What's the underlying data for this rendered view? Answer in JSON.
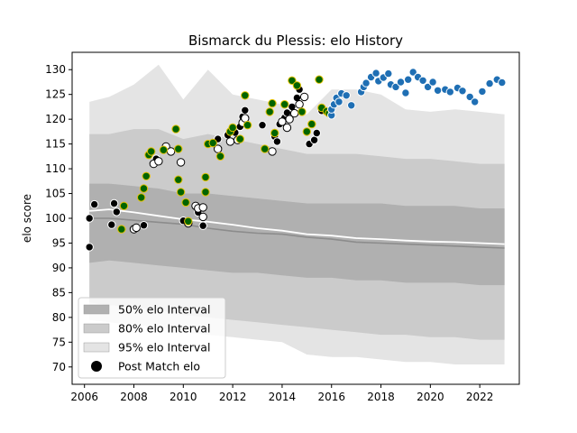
{
  "chart_data": {
    "type": "scatter",
    "title": "Bismarck du Plessis: elo History",
    "xlabel": "",
    "ylabel": "elo score",
    "xlim": [
      2005.5,
      2023.6
    ],
    "ylim": [
      66.5,
      133.5
    ],
    "x_ticks": [
      2006,
      2008,
      2010,
      2012,
      2014,
      2016,
      2018,
      2020,
      2022
    ],
    "y_ticks": [
      70,
      75,
      80,
      85,
      90,
      95,
      100,
      105,
      110,
      115,
      120,
      125,
      130
    ],
    "grid": false,
    "legend_position": "lower-left",
    "legend": [
      {
        "label": "50% elo Interval",
        "kind": "patch",
        "color": "#b0b0b0"
      },
      {
        "label": "80% elo Interval",
        "kind": "patch",
        "color": "#cbcbcb"
      },
      {
        "label": "95% elo Interval",
        "kind": "patch",
        "color": "#e4e4e4"
      },
      {
        "label": "Post Match elo",
        "kind": "marker",
        "color": "#000000"
      }
    ],
    "colors": {
      "band95": "#e4e4e4",
      "band80": "#cbcbcb",
      "band50": "#b0b0b0",
      "median_line": "#8c8c8c",
      "mean_line": "#ffffff",
      "black_point": "#000000",
      "white_point": "#ffffff",
      "green_point": "#006400",
      "gold_edge": "#e6c200",
      "blue_point": "#1f6fb4"
    },
    "bands": {
      "x": [
        2006.2,
        2007.0,
        2008.0,
        2009.0,
        2010.0,
        2011.0,
        2012.0,
        2013.0,
        2014.0,
        2015.0,
        2016.0,
        2017.0,
        2018.0,
        2019.0,
        2020.0,
        2021.0,
        2022.0,
        2023.0
      ],
      "p95_hi": [
        123.5,
        124.5,
        127.0,
        131.0,
        124.0,
        130.0,
        125.0,
        124.0,
        123.0,
        121.0,
        126.0,
        126.0,
        125.0,
        122.0,
        121.5,
        122.0,
        121.5,
        121.0
      ],
      "p80_hi": [
        117.0,
        117.0,
        118.0,
        118.0,
        116.0,
        117.0,
        116.0,
        115.0,
        114.0,
        113.0,
        113.0,
        113.0,
        112.5,
        112.0,
        112.0,
        111.5,
        111.0,
        111.0
      ],
      "p50_hi": [
        107.0,
        107.0,
        106.5,
        106.0,
        105.0,
        105.0,
        104.5,
        104.0,
        103.5,
        103.0,
        103.0,
        103.0,
        103.0,
        102.5,
        102.5,
        102.5,
        102.0,
        102.0
      ],
      "p50_lo": [
        91.0,
        91.5,
        91.0,
        90.5,
        90.0,
        89.5,
        89.0,
        89.0,
        88.5,
        88.0,
        88.0,
        87.5,
        87.5,
        87.0,
        87.0,
        87.0,
        86.5,
        86.5
      ],
      "p80_lo": [
        83.0,
        82.5,
        82.0,
        81.5,
        80.5,
        80.0,
        79.5,
        79.0,
        78.5,
        78.0,
        77.5,
        77.0,
        76.5,
        76.5,
        76.0,
        76.0,
        75.5,
        75.5
      ],
      "p95_lo": [
        79.5,
        79.0,
        78.5,
        78.0,
        77.0,
        76.5,
        76.0,
        75.5,
        75.0,
        72.5,
        72.0,
        72.0,
        71.5,
        71.0,
        71.0,
        70.5,
        70.5,
        70.5
      ]
    },
    "median_line": {
      "x": [
        2006.2,
        2007.0,
        2008.0,
        2009.0,
        2010.0,
        2011.0,
        2012.0,
        2013.0,
        2014.0,
        2015.0,
        2016.0,
        2017.0,
        2018.0,
        2019.0,
        2020.0,
        2021.0,
        2022.0,
        2023.0
      ],
      "y": [
        100.0,
        100.0,
        99.6,
        99.2,
        98.8,
        98.0,
        97.4,
        97.0,
        96.8,
        96.2,
        95.8,
        95.2,
        95.0,
        94.8,
        94.6,
        94.4,
        94.2,
        94.0
      ]
    },
    "mean_line": {
      "x": [
        2006.2,
        2007.0,
        2008.0,
        2009.0,
        2010.0,
        2011.0,
        2012.0,
        2013.0,
        2014.0,
        2015.0,
        2016.0,
        2017.0,
        2018.0,
        2019.0,
        2020.0,
        2021.0,
        2022.0,
        2023.0
      ],
      "y": [
        101.5,
        101.8,
        101.2,
        100.5,
        99.8,
        99.3,
        98.7,
        98.0,
        97.5,
        96.8,
        96.5,
        96.0,
        95.8,
        95.5,
        95.3,
        95.2,
        95.0,
        94.8
      ]
    },
    "series": [
      {
        "style": "black",
        "points": [
          [
            2006.2,
            100.0
          ],
          [
            2006.2,
            94.2
          ],
          [
            2006.4,
            102.8
          ],
          [
            2007.2,
            103.0
          ],
          [
            2007.3,
            101.3
          ],
          [
            2007.1,
            98.7
          ],
          [
            2008.4,
            98.6
          ],
          [
            2008.9,
            112.0
          ],
          [
            2010.0,
            99.5
          ],
          [
            2010.6,
            101.2
          ],
          [
            2010.8,
            98.5
          ],
          [
            2011.4,
            116.0
          ],
          [
            2011.8,
            116.8
          ],
          [
            2012.1,
            117.3
          ],
          [
            2012.3,
            118.5
          ],
          [
            2012.4,
            120.5
          ],
          [
            2012.5,
            121.8
          ],
          [
            2013.2,
            118.8
          ],
          [
            2013.7,
            116.5
          ],
          [
            2013.8,
            115.5
          ],
          [
            2013.9,
            119.0
          ],
          [
            2014.1,
            120.3
          ],
          [
            2014.2,
            121.3
          ],
          [
            2014.4,
            122.5
          ],
          [
            2014.6,
            124.3
          ],
          [
            2014.7,
            126.0
          ],
          [
            2015.1,
            115.0
          ],
          [
            2015.3,
            115.8
          ],
          [
            2015.4,
            117.2
          ],
          [
            2015.6,
            121.7
          ]
        ]
      },
      {
        "style": "white",
        "points": [
          [
            2008.0,
            97.8
          ],
          [
            2008.1,
            98.1
          ],
          [
            2008.8,
            111.0
          ],
          [
            2009.0,
            111.5
          ],
          [
            2009.3,
            114.5
          ],
          [
            2009.5,
            113.5
          ],
          [
            2009.9,
            111.3
          ],
          [
            2010.2,
            99.0
          ],
          [
            2010.5,
            102.5
          ],
          [
            2010.6,
            102.0
          ],
          [
            2010.8,
            100.3
          ],
          [
            2010.8,
            102.2
          ],
          [
            2011.4,
            114.0
          ],
          [
            2011.9,
            115.5
          ],
          [
            2012.2,
            115.8
          ],
          [
            2012.4,
            119.3
          ],
          [
            2012.5,
            120.2
          ],
          [
            2013.6,
            113.5
          ],
          [
            2014.0,
            119.5
          ],
          [
            2014.2,
            118.3
          ],
          [
            2014.3,
            120.0
          ],
          [
            2014.5,
            121.2
          ],
          [
            2014.7,
            123.0
          ],
          [
            2014.9,
            124.5
          ]
        ]
      },
      {
        "style": "green",
        "points": [
          [
            2007.5,
            97.8
          ],
          [
            2007.6,
            102.5
          ],
          [
            2008.3,
            104.2
          ],
          [
            2008.4,
            106.0
          ],
          [
            2008.5,
            108.5
          ],
          [
            2008.6,
            112.8
          ],
          [
            2008.7,
            113.5
          ],
          [
            2009.2,
            113.8
          ],
          [
            2009.7,
            118.0
          ],
          [
            2009.8,
            114.0
          ],
          [
            2009.8,
            107.8
          ],
          [
            2009.9,
            105.3
          ],
          [
            2010.1,
            103.2
          ],
          [
            2010.2,
            99.4
          ],
          [
            2010.9,
            108.3
          ],
          [
            2010.9,
            105.3
          ],
          [
            2011.0,
            115.0
          ],
          [
            2011.2,
            115.2
          ],
          [
            2011.5,
            112.5
          ],
          [
            2011.9,
            117.5
          ],
          [
            2012.0,
            118.3
          ],
          [
            2012.3,
            116.0
          ],
          [
            2012.5,
            124.8
          ],
          [
            2012.6,
            118.8
          ],
          [
            2013.3,
            114.0
          ],
          [
            2013.5,
            121.5
          ],
          [
            2013.6,
            123.2
          ],
          [
            2013.7,
            117.2
          ],
          [
            2014.1,
            123.0
          ],
          [
            2014.4,
            127.8
          ],
          [
            2014.6,
            126.8
          ],
          [
            2014.8,
            121.5
          ],
          [
            2015.0,
            117.5
          ],
          [
            2015.2,
            119.0
          ],
          [
            2015.5,
            128.0
          ],
          [
            2015.6,
            122.3
          ],
          [
            2015.8,
            121.6
          ],
          [
            2015.9,
            121.2
          ]
        ]
      },
      {
        "style": "blue",
        "points": [
          [
            2016.0,
            120.8
          ],
          [
            2016.0,
            122.0
          ],
          [
            2016.1,
            123.0
          ],
          [
            2016.2,
            124.3
          ],
          [
            2016.3,
            123.5
          ],
          [
            2016.4,
            125.2
          ],
          [
            2016.6,
            124.8
          ],
          [
            2016.8,
            122.8
          ],
          [
            2017.2,
            125.5
          ],
          [
            2017.3,
            126.5
          ],
          [
            2017.4,
            127.3
          ],
          [
            2017.6,
            128.5
          ],
          [
            2017.8,
            129.3
          ],
          [
            2017.9,
            127.7
          ],
          [
            2018.1,
            128.4
          ],
          [
            2018.3,
            129.2
          ],
          [
            2018.4,
            127.0
          ],
          [
            2018.6,
            126.5
          ],
          [
            2018.8,
            127.5
          ],
          [
            2019.0,
            125.3
          ],
          [
            2019.1,
            128.0
          ],
          [
            2019.3,
            129.5
          ],
          [
            2019.5,
            128.5
          ],
          [
            2019.7,
            127.8
          ],
          [
            2019.9,
            126.5
          ],
          [
            2020.1,
            127.5
          ],
          [
            2020.3,
            125.8
          ],
          [
            2020.6,
            126.0
          ],
          [
            2020.8,
            125.5
          ],
          [
            2021.1,
            126.3
          ],
          [
            2021.3,
            125.7
          ],
          [
            2021.6,
            124.5
          ],
          [
            2021.8,
            123.5
          ],
          [
            2022.1,
            125.6
          ],
          [
            2022.4,
            127.2
          ],
          [
            2022.7,
            128.0
          ],
          [
            2022.9,
            127.4
          ]
        ]
      }
    ]
  }
}
